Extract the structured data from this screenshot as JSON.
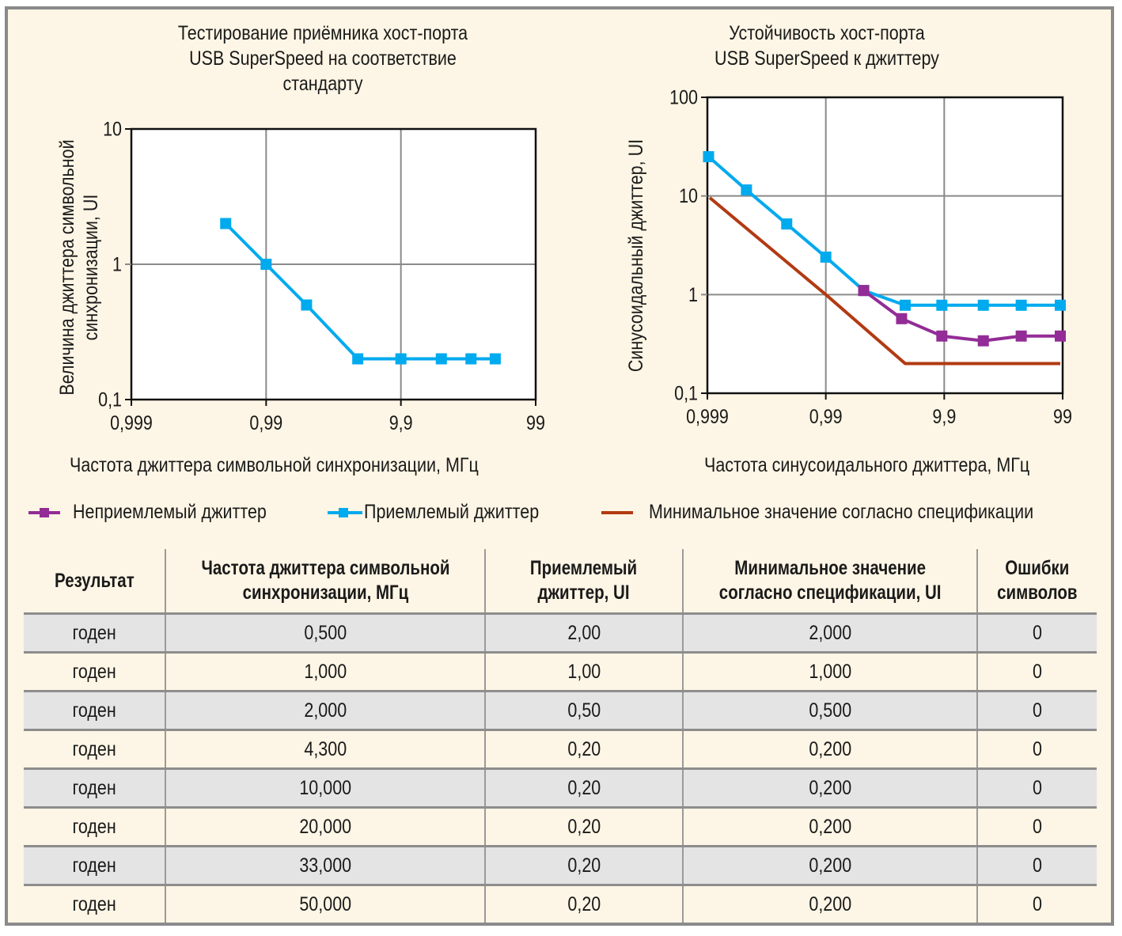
{
  "chart_data": [
    {
      "type": "line",
      "title": "Тестирование приёмника хост-порта USB SuperSpeed на соответствие стандарту",
      "title_lines": [
        "Тестирование приёмника хост-порта",
        "USB SuperSpeed на соответствие",
        "стандарту"
      ],
      "xlabel": "Частота джиттера символьной синхронизации, МГц",
      "ylabel_lines": [
        "Величина джиттера символьной",
        "синхронизации, UI"
      ],
      "x_scale": "log",
      "x_ticks": [
        "0,999",
        "0,99",
        "9,9",
        "99"
      ],
      "x_tick_positions": [
        0,
        1,
        2,
        3
      ],
      "y_scale": "log",
      "y_ticks": [
        "0,1",
        "1",
        "10"
      ],
      "y_tick_values": [
        0.1,
        1,
        10
      ],
      "ylim": [
        0.1,
        10
      ],
      "xlim": [
        0,
        3
      ],
      "grid": true,
      "series": [
        {
          "name": "Приемлемый джиттер",
          "color": "#00aaee",
          "marker": "square",
          "x": [
            0.7,
            1.0,
            1.3,
            1.68,
            2.0,
            2.3,
            2.52,
            2.7
          ],
          "y": [
            2.0,
            1.0,
            0.5,
            0.2,
            0.2,
            0.2,
            0.2,
            0.2
          ]
        }
      ]
    },
    {
      "type": "line",
      "title": "Устойчивость хост-порта USB SuperSpeed к джиттеру",
      "title_lines": [
        "Устойчивость хост-порта",
        "USB SuperSpeed к джиттеру"
      ],
      "xlabel": "Частота синусоидального джиттера, МГц",
      "ylabel_lines": [
        "Синусоидальный джиттер, UI"
      ],
      "x_scale": "log",
      "x_ticks": [
        "0,999",
        "0,99",
        "9,9",
        "99"
      ],
      "x_tick_positions": [
        0,
        1,
        2,
        3
      ],
      "y_scale": "log",
      "y_ticks": [
        "0,1",
        "1",
        "10",
        "100"
      ],
      "y_tick_values": [
        0.1,
        1,
        10,
        100
      ],
      "ylim": [
        0.1,
        100
      ],
      "xlim": [
        0,
        3
      ],
      "grid": true,
      "series": [
        {
          "name": "Приемлемый джиттер",
          "color": "#00aaee",
          "marker": "square",
          "x": [
            0.01,
            0.33,
            0.67,
            1.0,
            1.32,
            1.67,
            1.98,
            2.33,
            2.65,
            2.98
          ],
          "y": [
            25,
            11.5,
            5.2,
            2.4,
            1.1,
            0.78,
            0.78,
            0.78,
            0.78,
            0.78
          ]
        },
        {
          "name": "Неприемлемый джиттер",
          "color": "#932c96",
          "marker": "square",
          "x": [
            1.32,
            1.64,
            1.98,
            2.33,
            2.65,
            2.98
          ],
          "y": [
            1.1,
            0.57,
            0.38,
            0.34,
            0.38,
            0.38
          ]
        },
        {
          "name": "Минимальное значение согласно спецификации",
          "color": "#b23a12",
          "marker": "none",
          "x": [
            0.02,
            1.0,
            1.67,
            2.98
          ],
          "y": [
            9.6,
            1.0,
            0.2,
            0.2
          ]
        }
      ]
    }
  ],
  "legend": [
    {
      "label": "Неприемлемый джиттер",
      "color": "#932c96",
      "marker": "square"
    },
    {
      "label": "Приемлемый джиттер",
      "color": "#00aaee",
      "marker": "square"
    },
    {
      "label": "Минимальное значение согласно спецификации",
      "color": "#b23a12",
      "marker": "none"
    }
  ],
  "table": {
    "headers": [
      "Результат",
      "Частота джиттера символьной синхронизации, МГц",
      "Приемлемый джиттер, UI",
      "Минимальное значение согласно спецификации, UI",
      "Ошибки символов"
    ],
    "header_lines": [
      [
        "Результат"
      ],
      [
        "Частота джиттера символьной",
        "синхронизации, МГц"
      ],
      [
        "Приемлемый",
        "джиттер, UI"
      ],
      [
        "Минимальное значение",
        "согласно спецификации, UI"
      ],
      [
        "Ошибки",
        "символов"
      ]
    ],
    "rows": [
      [
        "годен",
        "0,500",
        "2,00",
        "2,000",
        "0"
      ],
      [
        "годен",
        "1,000",
        "1,00",
        "1,000",
        "0"
      ],
      [
        "годен",
        "2,000",
        "0,50",
        "0,500",
        "0"
      ],
      [
        "годен",
        "4,300",
        "0,20",
        "0,200",
        "0"
      ],
      [
        "годен",
        "10,000",
        "0,20",
        "0,200",
        "0"
      ],
      [
        "годен",
        "20,000",
        "0,20",
        "0,200",
        "0"
      ],
      [
        "годен",
        "33,000",
        "0,20",
        "0,200",
        "0"
      ],
      [
        "годен",
        "50,000",
        "0,20",
        "0,200",
        "0"
      ]
    ]
  }
}
